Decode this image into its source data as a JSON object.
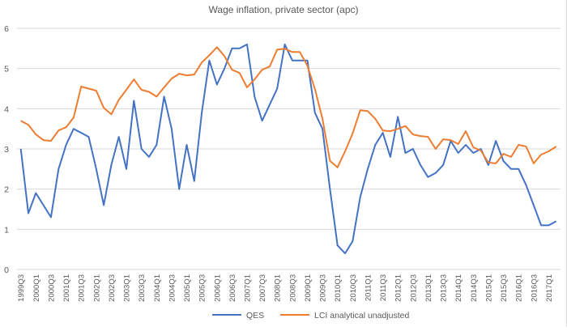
{
  "chart_data": {
    "type": "line",
    "title": "Wage inflation, private sector (apc)",
    "xlabel": "",
    "ylabel": "",
    "ylim": [
      0,
      6
    ],
    "yticks": [
      0,
      1,
      2,
      3,
      4,
      5,
      6
    ],
    "grid": true,
    "legend_position": "bottom",
    "x": [
      "1999Q3",
      "1999Q4",
      "2000Q1",
      "2000Q2",
      "2000Q3",
      "2000Q4",
      "2001Q1",
      "2001Q2",
      "2001Q3",
      "2001Q4",
      "2002Q1",
      "2002Q2",
      "2002Q3",
      "2002Q4",
      "2003Q1",
      "2003Q2",
      "2003Q3",
      "2003Q4",
      "2004Q1",
      "2004Q2",
      "2004Q3",
      "2004Q4",
      "2005Q1",
      "2005Q2",
      "2005Q3",
      "2005Q4",
      "2006Q1",
      "2006Q2",
      "2006Q3",
      "2006Q4",
      "2007Q1",
      "2007Q2",
      "2007Q3",
      "2007Q4",
      "2008Q1",
      "2008Q2",
      "2008Q3",
      "2008Q4",
      "2009Q1",
      "2009Q2",
      "2009Q3",
      "2009Q4",
      "2010Q1",
      "2010Q2",
      "2010Q3",
      "2010Q4",
      "2011Q1",
      "2011Q2",
      "2011Q3",
      "2011Q4",
      "2012Q1",
      "2012Q2",
      "2012Q3",
      "2012Q4",
      "2013Q1",
      "2013Q2",
      "2013Q3",
      "2013Q4",
      "2014Q1",
      "2014Q2",
      "2014Q3",
      "2014Q4",
      "2015Q1",
      "2015Q2",
      "2015Q3",
      "2015Q4",
      "2016Q1",
      "2016Q2",
      "2016Q3",
      "2016Q4",
      "2017Q1",
      "2017Q2"
    ],
    "xtick_labels": [
      "1999Q3",
      "2000Q1",
      "2000Q3",
      "2001Q1",
      "2001Q3",
      "2002Q1",
      "2002Q3",
      "2003Q1",
      "2003Q3",
      "2004Q1",
      "2004Q3",
      "2005Q1",
      "2005Q3",
      "2006Q1",
      "2006Q3",
      "2007Q1",
      "2007Q3",
      "2008Q1",
      "2008Q3",
      "2009Q1",
      "2009Q3",
      "2010Q1",
      "2010Q3",
      "2011Q1",
      "2011Q3",
      "2012Q1",
      "2012Q3",
      "2013Q1",
      "2013Q3",
      "2014Q1",
      "2014Q3",
      "2015Q1",
      "2015Q3",
      "2016Q1",
      "2016Q3",
      "2017Q1"
    ],
    "series": [
      {
        "name": "QES",
        "color": "#4472c4",
        "values": [
          3.0,
          1.4,
          1.9,
          1.6,
          1.3,
          2.5,
          3.1,
          3.5,
          3.4,
          3.3,
          2.5,
          1.6,
          2.6,
          3.3,
          2.5,
          4.2,
          3.0,
          2.8,
          3.1,
          4.3,
          3.5,
          2.0,
          3.1,
          2.2,
          3.9,
          5.2,
          4.6,
          5.0,
          5.5,
          5.5,
          5.6,
          4.3,
          3.7,
          4.1,
          4.5,
          5.6,
          5.2,
          5.2,
          5.2,
          3.9,
          3.5,
          2.0,
          0.6,
          0.4,
          0.7,
          1.8,
          2.5,
          3.1,
          3.4,
          2.8,
          3.8,
          2.9,
          3.0,
          2.6,
          2.3,
          2.4,
          2.6,
          3.2,
          2.9,
          3.1,
          2.9,
          3.0,
          2.6,
          3.2,
          2.7,
          2.5,
          2.5,
          2.1,
          1.6,
          1.1,
          1.1,
          1.2
        ]
      },
      {
        "name": "LCI analytical unadjusted",
        "color": "#ed7d31",
        "values": [
          3.7,
          3.6,
          3.36,
          3.22,
          3.2,
          3.46,
          3.54,
          3.78,
          4.55,
          4.5,
          4.45,
          4.02,
          3.86,
          4.22,
          4.47,
          4.73,
          4.47,
          4.42,
          4.3,
          4.53,
          4.75,
          4.87,
          4.83,
          4.85,
          5.15,
          5.33,
          5.53,
          5.31,
          4.97,
          4.89,
          4.53,
          4.73,
          4.97,
          5.05,
          5.47,
          5.49,
          5.41,
          5.41,
          5.07,
          4.49,
          3.75,
          2.7,
          2.54,
          2.94,
          3.38,
          3.96,
          3.94,
          3.75,
          3.46,
          3.44,
          3.5,
          3.57,
          3.36,
          3.32,
          3.3,
          3.0,
          3.24,
          3.22,
          3.12,
          3.44,
          3.04,
          2.96,
          2.66,
          2.64,
          2.88,
          2.8,
          3.1,
          3.06,
          2.64,
          2.86,
          2.94,
          3.06
        ]
      }
    ]
  }
}
